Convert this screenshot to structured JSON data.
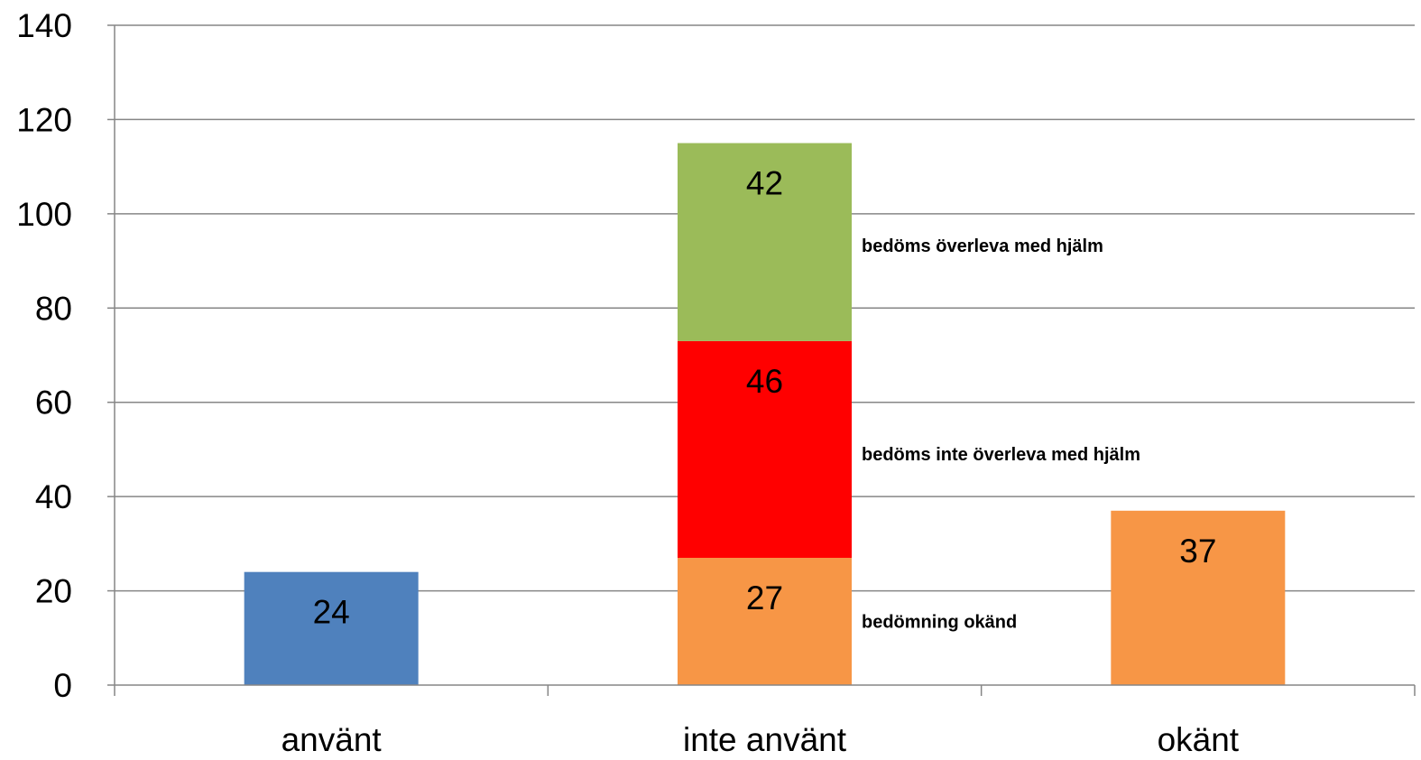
{
  "chart_data": {
    "type": "bar",
    "stacked": true,
    "categories": [
      "använt",
      "inte använt",
      "okänt"
    ],
    "ylim": [
      0,
      140
    ],
    "yticks": [
      0,
      20,
      40,
      60,
      80,
      100,
      120,
      140
    ],
    "grid": true,
    "legend": "none",
    "series": [
      {
        "values": [
          24,
          0,
          0
        ],
        "color": "#4F81BD"
      },
      {
        "values": [
          0,
          27,
          37
        ],
        "color": "#F79646"
      },
      {
        "values": [
          0,
          46,
          0
        ],
        "color": "#FF0000"
      },
      {
        "values": [
          0,
          42,
          0
        ],
        "color": "#9BBB59"
      }
    ],
    "annotations": [
      {
        "text": "bedöms överleva med hjälm",
        "category": "inte använt",
        "series_index": 3
      },
      {
        "text": "bedöms inte överleva med hjälm",
        "category": "inte använt",
        "series_index": 2
      },
      {
        "text": "bedömning okänd",
        "category": "inte använt",
        "series_index": 1
      }
    ]
  }
}
